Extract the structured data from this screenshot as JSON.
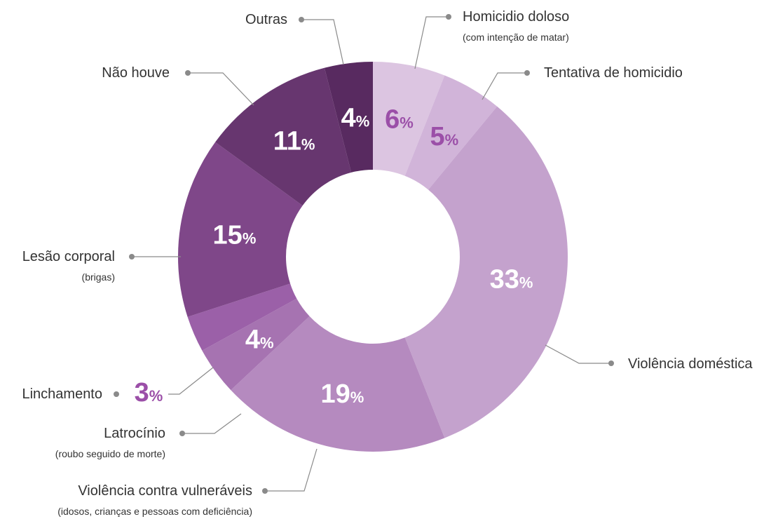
{
  "chart_data": {
    "type": "pie",
    "variant": "donut",
    "percent_sign": "%",
    "slices": [
      {
        "label": "Homicidio doloso",
        "sublabel": "(com intenção de matar)",
        "value": 6,
        "display": "6",
        "color": "#dcc5e1",
        "text_color": "#9b4fa8"
      },
      {
        "label": "Tentativa de homicidio",
        "sublabel": "",
        "value": 5,
        "display": "5",
        "color": "#d1b4d9",
        "text_color": "#9b4fa8"
      },
      {
        "label": "Violência doméstica",
        "sublabel": "",
        "value": 33,
        "display": "33",
        "color": "#c4a2cd",
        "text_color": "#ffffff"
      },
      {
        "label": "Violência contra vulneráveis",
        "sublabel": "(idosos, crianças e pessoas com deficiência)",
        "value": 19,
        "display": "19",
        "color": "#b58abf",
        "text_color": "#ffffff"
      },
      {
        "label": "Latrocínio",
        "sublabel": "(roubo seguido de morte)",
        "value": 4,
        "display": "4",
        "color": "#a673b1",
        "text_color": "#ffffff"
      },
      {
        "label": "Linchamento",
        "sublabel": "",
        "value": 3,
        "display": "3",
        "color": "#9b60a8",
        "text_color": "#9b4fa8"
      },
      {
        "label": "Lesão corporal",
        "sublabel": "(brigas)",
        "value": 15,
        "display": "15",
        "color": "#7f4789",
        "text_color": "#ffffff"
      },
      {
        "label": "Não houve",
        "sublabel": "",
        "value": 11,
        "display": "11",
        "color": "#67366f",
        "text_color": "#ffffff"
      },
      {
        "label": "Outras",
        "sublabel": "",
        "value": 4,
        "display": "4",
        "color": "#582a60",
        "text_color": "#ffffff"
      }
    ],
    "leader_color": "#8a8a8a",
    "label_color": "#333333"
  }
}
